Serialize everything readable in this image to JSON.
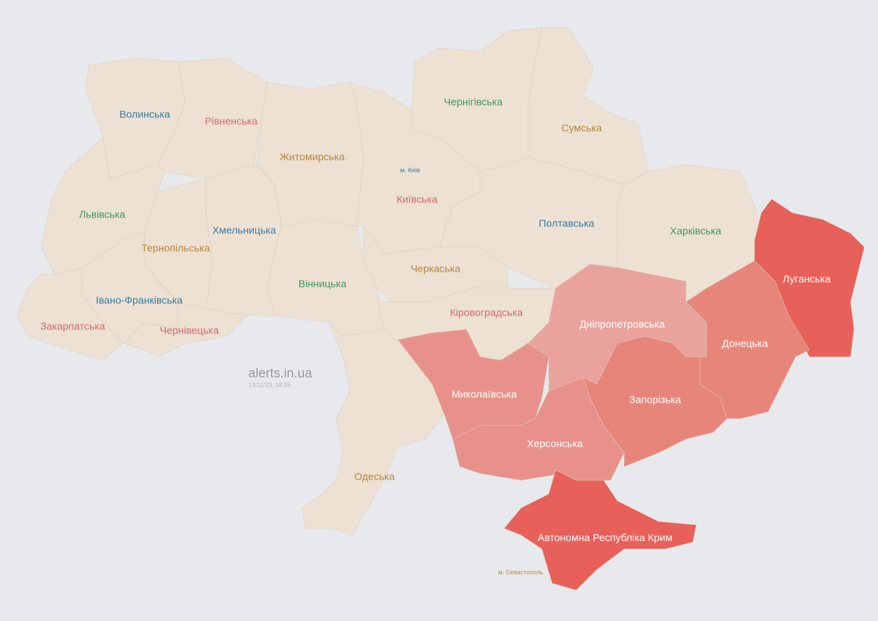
{
  "watermark": {
    "site": "alerts.in.ua",
    "timestamp": "13/11/23, 18:35"
  },
  "colors": {
    "background": "#e7e9ec",
    "no_alert": "#ece1d3",
    "alert_light": "#e9a39c",
    "alert_medium": "#e8918b",
    "alert_strong": "#e8857b",
    "alert_full": "#e8605a"
  },
  "regions": [
    {
      "name": "Волинська",
      "status": "none",
      "label_color": "#3a7ca5"
    },
    {
      "name": "Рівненська",
      "status": "none",
      "label_color": "#d9686b"
    },
    {
      "name": "Житомирська",
      "status": "none",
      "label_color": "#b8873a"
    },
    {
      "name": "Чернігівська",
      "status": "none",
      "label_color": "#3f9a5c"
    },
    {
      "name": "Сумська",
      "status": "none",
      "label_color": "#b8873a"
    },
    {
      "name": "м. Київ",
      "status": "none",
      "label_color": "#3a7ca5"
    },
    {
      "name": "Київська",
      "status": "none",
      "label_color": "#d9686b"
    },
    {
      "name": "Львівська",
      "status": "none",
      "label_color": "#3f9a5c"
    },
    {
      "name": "Хмельницька",
      "status": "none",
      "label_color": "#3a7ca5"
    },
    {
      "name": "Тернопільська",
      "status": "none",
      "label_color": "#b8873a"
    },
    {
      "name": "Полтавська",
      "status": "none",
      "label_color": "#3a7ca5"
    },
    {
      "name": "Харківська",
      "status": "none",
      "label_color": "#3f9a5c"
    },
    {
      "name": "Вінницька",
      "status": "none",
      "label_color": "#3f9a5c"
    },
    {
      "name": "Черкаська",
      "status": "none",
      "label_color": "#b8873a"
    },
    {
      "name": "Івано-Франківська",
      "status": "none",
      "label_color": "#3a7ca5"
    },
    {
      "name": "Закарпатська",
      "status": "none",
      "label_color": "#d9686b"
    },
    {
      "name": "Чернівецька",
      "status": "none",
      "label_color": "#d9686b"
    },
    {
      "name": "Кіровоградська",
      "status": "none",
      "label_color": "#d9686b"
    },
    {
      "name": "Одеська",
      "status": "none",
      "label_color": "#b8873a"
    },
    {
      "name": "Луганська",
      "status": "alert",
      "label_color": "#ffffff"
    },
    {
      "name": "Дніпропетровська",
      "status": "alert",
      "label_color": "#ffffff"
    },
    {
      "name": "Донецька",
      "status": "alert",
      "label_color": "#ffffff"
    },
    {
      "name": "Миколаївська",
      "status": "alert",
      "label_color": "#ffffff"
    },
    {
      "name": "Запорізька",
      "status": "alert",
      "label_color": "#ffffff"
    },
    {
      "name": "Херсонська",
      "status": "alert",
      "label_color": "#ffffff"
    },
    {
      "name": "Автономна Республіка Крим",
      "status": "alert",
      "label_color": "#ffffff"
    },
    {
      "name": "м. Севастополь",
      "status": "none",
      "label_color": "#b8873a"
    }
  ]
}
